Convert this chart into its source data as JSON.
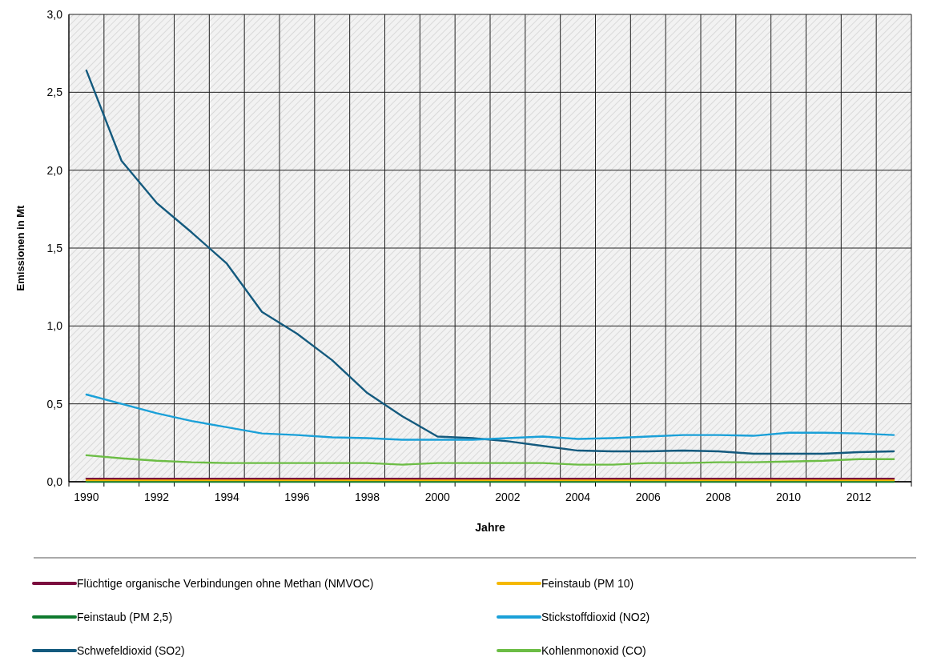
{
  "chart_data": {
    "type": "line",
    "xlabel": "Jahre",
    "ylabel": "Emissionen in Mt",
    "categories": [
      "1990",
      null,
      "1992",
      null,
      "1994",
      null,
      "1996",
      null,
      "1998",
      null,
      "2000",
      null,
      "2002",
      null,
      "2004",
      null,
      "2006",
      null,
      "2008",
      null,
      "2010",
      null,
      "2012",
      null
    ],
    "ylim": [
      0,
      3
    ],
    "yticks": [
      {
        "value": 0,
        "label": "0,0"
      },
      {
        "value": 0.5,
        "label": "0,5"
      },
      {
        "value": 1,
        "label": "1,0"
      },
      {
        "value": 1.5,
        "label": "1,5"
      },
      {
        "value": 2,
        "label": "2,0"
      },
      {
        "value": 2.5,
        "label": "2,5"
      },
      {
        "value": 3,
        "label": "3,0"
      }
    ],
    "grid": true,
    "legend": "bottom",
    "marker": "none",
    "line_style": "solid",
    "series": [
      {
        "name": "Flüchtige organische Verbindungen ohne Methan (NMVOC)",
        "color": "#7b0c3e",
        "values": [
          0.02,
          0.02,
          0.02,
          0.02,
          0.02,
          0.02,
          0.02,
          0.02,
          0.02,
          0.02,
          0.02,
          0.02,
          0.02,
          0.02,
          0.02,
          0.02,
          0.02,
          0.02,
          0.02,
          0.02,
          0.02,
          0.02,
          0.02,
          0.02
        ]
      },
      {
        "name": "Feinstaub (PM 10)",
        "color": "#f5b800",
        "values": [
          0.01,
          0.01,
          0.01,
          0.01,
          0.01,
          0.01,
          0.01,
          0.01,
          0.01,
          0.01,
          0.01,
          0.01,
          0.01,
          0.01,
          0.01,
          0.01,
          0.01,
          0.01,
          0.01,
          0.01,
          0.01,
          0.01,
          0.01,
          0.01
        ]
      },
      {
        "name": "Feinstaub (PM 2,5)",
        "color": "#0e7a2e",
        "values": [
          0,
          0,
          0,
          0,
          0,
          0,
          0,
          0,
          0,
          0,
          0,
          0,
          0,
          0,
          0,
          0,
          0,
          0,
          0,
          0,
          0,
          0,
          0,
          0
        ]
      },
      {
        "name": "Stickstoffdioxid (NO2)",
        "color": "#1aa0d8",
        "values": [
          0.56,
          0.5,
          0.44,
          0.39,
          0.35,
          0.31,
          0.3,
          0.285,
          0.28,
          0.27,
          0.27,
          0.27,
          0.28,
          0.29,
          0.275,
          0.28,
          0.29,
          0.3,
          0.3,
          0.295,
          0.315,
          0.315,
          0.31,
          0.3
        ]
      },
      {
        "name": "Schwefeldioxid (SO2)",
        "color": "#145a7e",
        "values": [
          2.64,
          2.06,
          1.79,
          1.6,
          1.4,
          1.09,
          0.95,
          0.78,
          0.57,
          0.42,
          0.29,
          0.28,
          0.26,
          0.23,
          0.2,
          0.195,
          0.195,
          0.2,
          0.195,
          0.18,
          0.18,
          0.18,
          0.19,
          0.195
        ]
      },
      {
        "name": "Kohlenmonoxid (CO)",
        "color": "#6cbd45",
        "values": [
          0.17,
          0.15,
          0.135,
          0.125,
          0.12,
          0.12,
          0.12,
          0.12,
          0.12,
          0.11,
          0.12,
          0.12,
          0.12,
          0.12,
          0.11,
          0.11,
          0.12,
          0.12,
          0.125,
          0.125,
          0.13,
          0.135,
          0.145,
          0.145
        ]
      }
    ]
  }
}
